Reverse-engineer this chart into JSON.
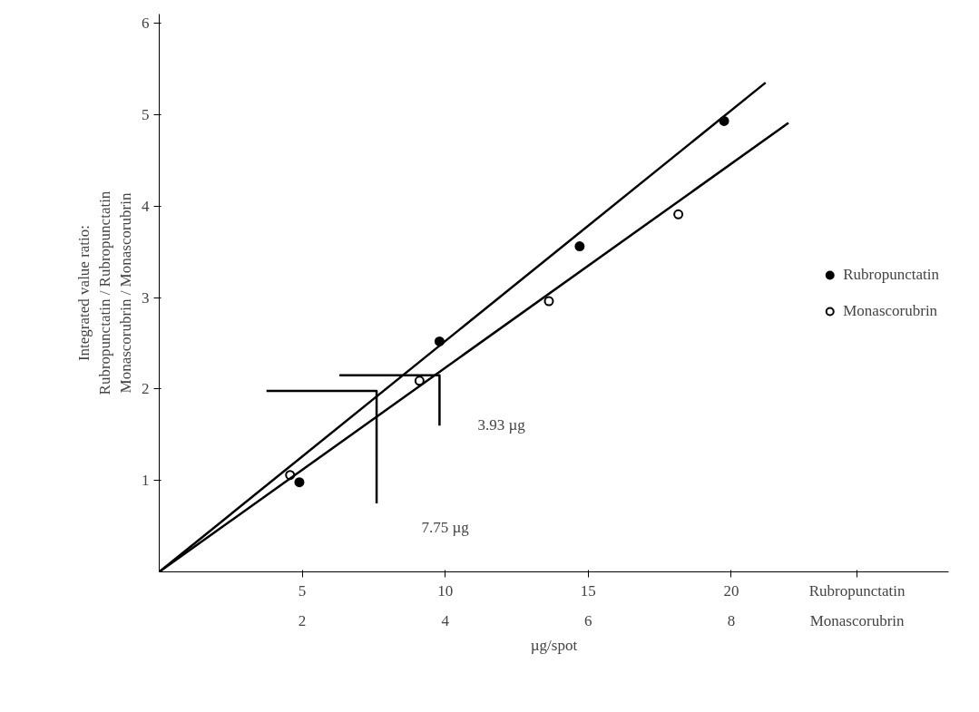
{
  "chart_data": {
    "type": "scatter",
    "xlabel": "µg/spot",
    "ylabel": "Integrated value ratio:\nRubropunctatin / Rubropunctatin\nMonascorubrin / Monascorubrin",
    "xlim": [
      0,
      27.6
    ],
    "xticks": [
      5,
      10,
      15,
      20,
      {
        "value": 24.4,
        "label": "Rubropunctatin"
      }
    ],
    "x2lim": [
      0,
      11.04
    ],
    "x2ticks": [
      2,
      4,
      6,
      8,
      {
        "value": 9.76,
        "label": "Monascorubrin"
      }
    ],
    "ylim": [
      0,
      6.1
    ],
    "yticks": [
      1,
      2,
      3,
      4,
      5,
      6
    ],
    "grid": false,
    "legend": "right",
    "series": [
      {
        "name": "Rubropunctatin",
        "marker": "circle",
        "color": "#000000",
        "x": [
          4.9,
          9.8,
          14.7,
          19.75
        ],
        "values": [
          0.98,
          2.52,
          3.56,
          4.93
        ]
      },
      {
        "name": "Monascorubrin",
        "marker": "circle_open",
        "color": "#000000",
        "axis": "x2",
        "x": [
          1.83,
          3.64,
          5.45,
          7.26
        ],
        "values": [
          1.06,
          2.09,
          2.96,
          3.91
        ]
      },
      {
        "type": "line",
        "color": "#000000",
        "x": [
          0,
          21.2
        ],
        "values": [
          0,
          5.35
        ]
      },
      {
        "type": "line",
        "color": "#000000",
        "axis": "x2",
        "x": [
          0,
          8.8
        ],
        "values": [
          0,
          4.91
        ]
      },
      {
        "type": "line",
        "color": "#000000",
        "x": [
          3.75,
          7.6,
          7.6
        ],
        "values": [
          1.98,
          1.98,
          0.75
        ]
      },
      {
        "type": "line",
        "color": "#000000",
        "x": [
          6.3,
          9.8,
          9.8
        ],
        "values": [
          2.15,
          2.15,
          1.6
        ]
      }
    ],
    "annotations": [
      "7.75 µg",
      "3.93 µg"
    ]
  }
}
